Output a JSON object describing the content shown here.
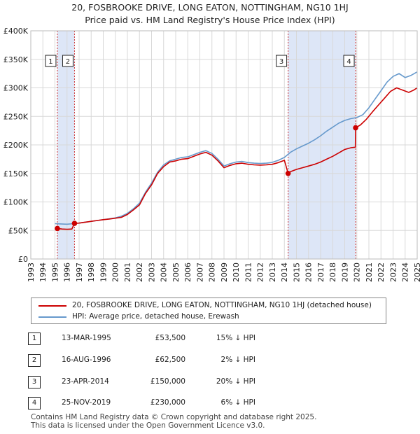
{
  "title": "20, FOSBROOKE DRIVE, LONG EATON, NOTTINGHAM, NG10 1HJ",
  "subtitle": "Price paid vs. HM Land Registry's House Price Index (HPI)",
  "colors": {
    "red": "#cc0000",
    "blue": "#6699cc",
    "band": "#dde6f7",
    "marker_line": "#cc3333",
    "grid": "#d8d8d8"
  },
  "chart_data": {
    "type": "line",
    "title": "Price paid vs. HM Land Registry's House Price Index (HPI)",
    "x_range": [
      1993,
      2025
    ],
    "y_range": [
      0,
      400000
    ],
    "y_ticks": [
      0,
      50000,
      100000,
      150000,
      200000,
      250000,
      300000,
      350000,
      400000
    ],
    "y_tick_labels": [
      "£0",
      "£50K",
      "£100K",
      "£150K",
      "£200K",
      "£250K",
      "£300K",
      "£350K",
      "£400K"
    ],
    "x_ticks": [
      1993,
      1994,
      1995,
      1996,
      1997,
      1998,
      1999,
      2000,
      2001,
      2002,
      2003,
      2004,
      2005,
      2006,
      2007,
      2008,
      2009,
      2010,
      2011,
      2012,
      2013,
      2014,
      2015,
      2016,
      2017,
      2018,
      2019,
      2020,
      2021,
      2022,
      2023,
      2024,
      2025
    ],
    "x_tick_labels": [
      "1993",
      "1994",
      "1995",
      "1996",
      "1997",
      "1998",
      "1999",
      "2000",
      "2001",
      "2002",
      "2003",
      "2004",
      "2005",
      "2006",
      "2007",
      "2008",
      "2009",
      "2010",
      "2011",
      "2012",
      "2013",
      "2014",
      "2015",
      "2016",
      "2017",
      "2018",
      "2019",
      "2020",
      "2021",
      "2022",
      "2023",
      "2024",
      "2025"
    ],
    "shaded_ranges": [
      [
        1995.2,
        1996.62
      ],
      [
        2014.31,
        2019.9
      ]
    ],
    "series": [
      {
        "name": "20, FOSBROOKE DRIVE, LONG EATON, NOTTINGHAM, NG10 1HJ (detached house)",
        "color": "#cc0000",
        "points": [
          [
            1995.2,
            53500
          ],
          [
            1995.6,
            52500
          ],
          [
            1996.0,
            52000
          ],
          [
            1996.4,
            52500
          ],
          [
            1996.62,
            62500
          ],
          [
            1997.0,
            63000
          ],
          [
            1997.5,
            64500
          ],
          [
            1998.0,
            66000
          ],
          [
            1998.5,
            67500
          ],
          [
            1999.0,
            69000
          ],
          [
            1999.5,
            70000
          ],
          [
            2000.0,
            71500
          ],
          [
            2000.5,
            73000
          ],
          [
            2001.0,
            78000
          ],
          [
            2001.5,
            86000
          ],
          [
            2002.0,
            95000
          ],
          [
            2002.5,
            115000
          ],
          [
            2003.0,
            130000
          ],
          [
            2003.5,
            150000
          ],
          [
            2004.0,
            162000
          ],
          [
            2004.5,
            170000
          ],
          [
            2005.0,
            172000
          ],
          [
            2005.5,
            175000
          ],
          [
            2006.0,
            176000
          ],
          [
            2006.5,
            180000
          ],
          [
            2007.0,
            184000
          ],
          [
            2007.5,
            187000
          ],
          [
            2008.0,
            182000
          ],
          [
            2008.5,
            172000
          ],
          [
            2009.0,
            160000
          ],
          [
            2009.5,
            164000
          ],
          [
            2010.0,
            167000
          ],
          [
            2010.5,
            168000
          ],
          [
            2011.0,
            166000
          ],
          [
            2011.5,
            165000
          ],
          [
            2012.0,
            164500
          ],
          [
            2012.5,
            165000
          ],
          [
            2013.0,
            166000
          ],
          [
            2013.5,
            169000
          ],
          [
            2014.0,
            173000
          ],
          [
            2014.31,
            150000
          ],
          [
            2014.5,
            153000
          ],
          [
            2015.0,
            157000
          ],
          [
            2015.5,
            160000
          ],
          [
            2016.0,
            163000
          ],
          [
            2016.5,
            166000
          ],
          [
            2017.0,
            170000
          ],
          [
            2017.5,
            175000
          ],
          [
            2018.0,
            180000
          ],
          [
            2018.5,
            186000
          ],
          [
            2019.0,
            192000
          ],
          [
            2019.5,
            195000
          ],
          [
            2019.88,
            196000
          ],
          [
            2019.9,
            230000
          ],
          [
            2020.3,
            235000
          ],
          [
            2020.8,
            245000
          ],
          [
            2021.3,
            258000
          ],
          [
            2021.8,
            270000
          ],
          [
            2022.3,
            282000
          ],
          [
            2022.8,
            294000
          ],
          [
            2023.3,
            300000
          ],
          [
            2023.8,
            296000
          ],
          [
            2024.3,
            292000
          ],
          [
            2024.7,
            296000
          ],
          [
            2025.0,
            300000
          ]
        ]
      },
      {
        "name": "HPI: Average price, detached house, Erewash",
        "color": "#6699cc",
        "points": [
          [
            1995.0,
            62000
          ],
          [
            1995.5,
            61500
          ],
          [
            1996.0,
            61000
          ],
          [
            1996.5,
            62000
          ],
          [
            1997.0,
            63000
          ],
          [
            1997.5,
            64500
          ],
          [
            1998.0,
            66000
          ],
          [
            1998.5,
            67500
          ],
          [
            1999.0,
            69000
          ],
          [
            1999.5,
            70500
          ],
          [
            2000.0,
            72000
          ],
          [
            2000.5,
            75000
          ],
          [
            2001.0,
            80000
          ],
          [
            2001.5,
            88000
          ],
          [
            2002.0,
            98000
          ],
          [
            2002.5,
            117000
          ],
          [
            2003.0,
            133000
          ],
          [
            2003.5,
            152000
          ],
          [
            2004.0,
            165000
          ],
          [
            2004.5,
            172000
          ],
          [
            2005.0,
            175000
          ],
          [
            2005.5,
            178000
          ],
          [
            2006.0,
            179000
          ],
          [
            2006.5,
            183000
          ],
          [
            2007.0,
            187000
          ],
          [
            2007.5,
            190000
          ],
          [
            2008.0,
            185000
          ],
          [
            2008.5,
            175000
          ],
          [
            2009.0,
            163000
          ],
          [
            2009.5,
            167000
          ],
          [
            2010.0,
            170000
          ],
          [
            2010.5,
            171000
          ],
          [
            2011.0,
            169000
          ],
          [
            2011.5,
            168000
          ],
          [
            2012.0,
            167500
          ],
          [
            2012.5,
            168000
          ],
          [
            2013.0,
            169500
          ],
          [
            2013.5,
            173000
          ],
          [
            2014.0,
            178000
          ],
          [
            2014.5,
            187000
          ],
          [
            2015.0,
            193000
          ],
          [
            2015.5,
            198000
          ],
          [
            2016.0,
            203000
          ],
          [
            2016.5,
            209000
          ],
          [
            2017.0,
            216000
          ],
          [
            2017.5,
            224000
          ],
          [
            2018.0,
            231000
          ],
          [
            2018.5,
            238000
          ],
          [
            2019.0,
            243000
          ],
          [
            2019.5,
            246000
          ],
          [
            2020.0,
            248000
          ],
          [
            2020.5,
            253000
          ],
          [
            2021.0,
            265000
          ],
          [
            2021.5,
            280000
          ],
          [
            2022.0,
            295000
          ],
          [
            2022.5,
            310000
          ],
          [
            2023.0,
            320000
          ],
          [
            2023.5,
            325000
          ],
          [
            2024.0,
            318000
          ],
          [
            2024.5,
            322000
          ],
          [
            2025.0,
            328000
          ]
        ]
      }
    ],
    "sales": [
      {
        "id": "1",
        "x": 1995.2,
        "price": 53500
      },
      {
        "id": "2",
        "x": 1996.62,
        "price": 62500
      },
      {
        "id": "3",
        "x": 2014.31,
        "price": 150000
      },
      {
        "id": "4",
        "x": 2019.9,
        "price": 230000
      }
    ]
  },
  "legend": {
    "items": [
      {
        "label": "20, FOSBROOKE DRIVE, LONG EATON, NOTTINGHAM, NG10 1HJ (detached house)",
        "color": "#cc0000"
      },
      {
        "label": "HPI: Average price, detached house, Erewash",
        "color": "#6699cc"
      }
    ]
  },
  "table": {
    "rows": [
      {
        "id": "1",
        "date": "13-MAR-1995",
        "price": "£53,500",
        "hpi": "15% ↓ HPI"
      },
      {
        "id": "2",
        "date": "16-AUG-1996",
        "price": "£62,500",
        "hpi": "2% ↓ HPI"
      },
      {
        "id": "3",
        "date": "23-APR-2014",
        "price": "£150,000",
        "hpi": "20% ↓ HPI"
      },
      {
        "id": "4",
        "date": "25-NOV-2019",
        "price": "£230,000",
        "hpi": "6% ↓ HPI"
      }
    ]
  },
  "footer": {
    "line1": "Contains HM Land Registry data © Crown copyright and database right 2025.",
    "line2": "This data is licensed under the Open Government Licence v3.0."
  }
}
